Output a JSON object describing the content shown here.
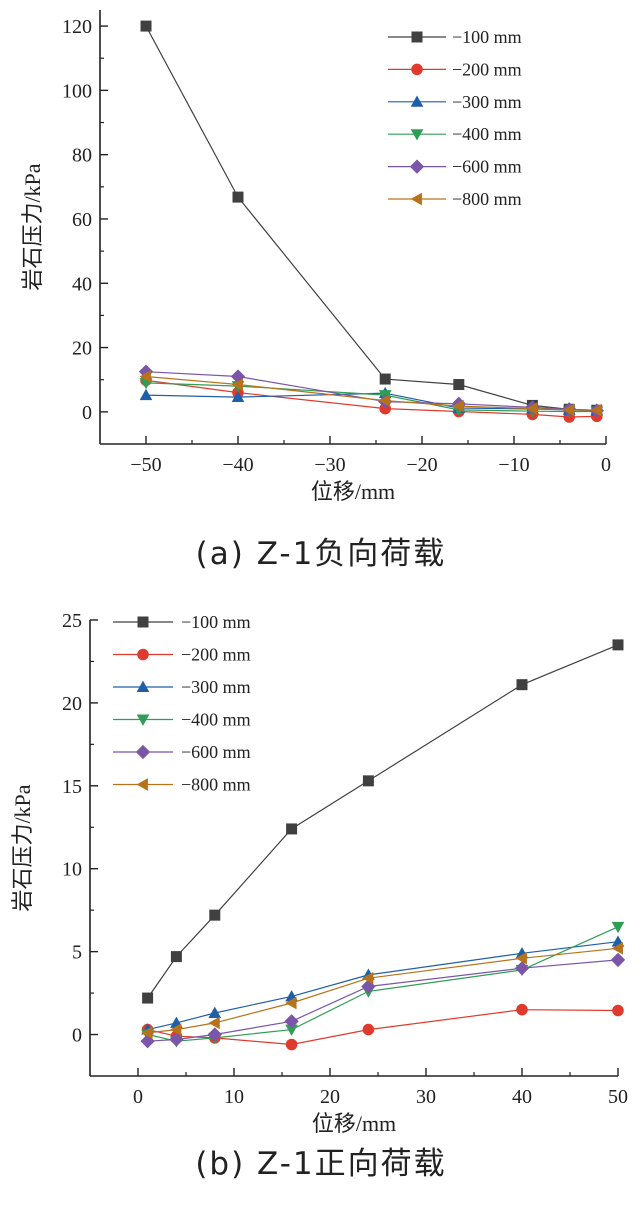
{
  "panels": [
    {
      "caption": "(a) Z-1负向荷载",
      "chart_data": {
        "type": "line",
        "xlabel": "位移/mm",
        "ylabel": "岩石压力/kPa",
        "xlim": [
          -55,
          0
        ],
        "ylim": [
          -10,
          125
        ],
        "xticks": [
          -50,
          -40,
          -30,
          -20,
          -10,
          0
        ],
        "yticks": [
          0,
          20,
          40,
          60,
          80,
          100,
          120
        ],
        "x": [
          -50,
          -40,
          -24,
          -16,
          -8,
          -4,
          -1
        ],
        "legend_position": "top-right",
        "series": [
          {
            "name": "−100 mm",
            "marker": "square",
            "color": "#404040",
            "values": [
              120,
              66.8,
              10.2,
              8.5,
              2.0,
              0.8,
              0.5
            ]
          },
          {
            "name": "−200 mm",
            "marker": "circle",
            "color": "#e03a2e",
            "values": [
              9.8,
              6.0,
              1.0,
              0.1,
              -0.8,
              -1.6,
              -1.4
            ]
          },
          {
            "name": "−300 mm",
            "marker": "triangle-up",
            "color": "#1f5fa8",
            "values": [
              5.2,
              4.6,
              5.8,
              1.2,
              0.9,
              0.6,
              0.4
            ]
          },
          {
            "name": "−400 mm",
            "marker": "triangle-down",
            "color": "#2e9e54",
            "values": [
              9.0,
              8.0,
              5.2,
              0.6,
              0.2,
              0.1,
              0.1
            ]
          },
          {
            "name": "−600 mm",
            "marker": "diamond",
            "color": "#7a55a8",
            "values": [
              12.5,
              11.0,
              3.2,
              2.5,
              1.4,
              0.8,
              0.4
            ]
          },
          {
            "name": "−800 mm",
            "marker": "triangle-left",
            "color": "#b8731a",
            "values": [
              11.0,
              8.5,
              3.5,
              1.8,
              1.0,
              0.6,
              0.5
            ]
          }
        ]
      }
    },
    {
      "caption": "(b) Z-1正向荷载",
      "chart_data": {
        "type": "line",
        "xlabel": "位移/mm",
        "ylabel": "岩石压力/kPa",
        "xlim": [
          -5,
          50
        ],
        "ylim": [
          -2.5,
          25
        ],
        "xticks": [
          0,
          10,
          20,
          30,
          40,
          50
        ],
        "yticks": [
          0,
          5,
          10,
          15,
          20,
          25
        ],
        "x": [
          1,
          4,
          8,
          16,
          24,
          40,
          50
        ],
        "legend_position": "top-left",
        "series": [
          {
            "name": "−100 mm",
            "marker": "square",
            "color": "#404040",
            "values": [
              2.2,
              4.7,
              7.2,
              12.4,
              15.3,
              21.1,
              23.5
            ]
          },
          {
            "name": "−200 mm",
            "marker": "circle",
            "color": "#e03a2e",
            "values": [
              0.3,
              -0.1,
              -0.2,
              -0.6,
              0.3,
              1.5,
              1.45
            ]
          },
          {
            "name": "−300 mm",
            "marker": "triangle-up",
            "color": "#1f5fa8",
            "values": [
              0.3,
              0.7,
              1.3,
              2.3,
              3.6,
              4.9,
              5.6
            ]
          },
          {
            "name": "−400 mm",
            "marker": "triangle-down",
            "color": "#2e9e54",
            "values": [
              0.0,
              -0.4,
              -0.2,
              0.3,
              2.6,
              3.9,
              6.5
            ]
          },
          {
            "name": "−600 mm",
            "marker": "diamond",
            "color": "#7a55a8",
            "values": [
              -0.4,
              -0.3,
              0.0,
              0.8,
              2.9,
              4.0,
              4.5
            ]
          },
          {
            "name": "−800 mm",
            "marker": "triangle-left",
            "color": "#b8731a",
            "values": [
              0.1,
              0.3,
              0.7,
              1.9,
              3.4,
              4.6,
              5.2
            ]
          }
        ]
      }
    }
  ]
}
